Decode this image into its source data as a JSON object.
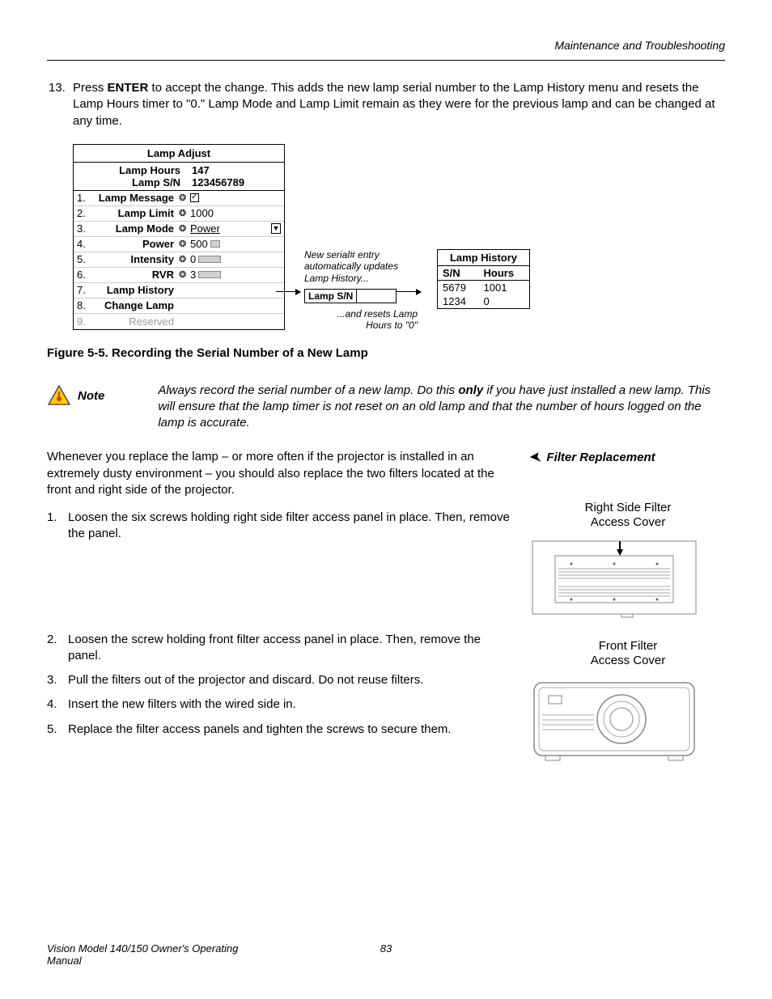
{
  "header": {
    "section": "Maintenance and Troubleshooting"
  },
  "step13": {
    "number": "13.",
    "text_pre": "Press ",
    "text_bold": "ENTER",
    "text_post": " to accept the change. This adds the new lamp serial number to the Lamp History menu and resets the Lamp Hours timer to \"0.\" Lamp Mode and Lamp Limit remain as they were for the previous lamp and can be changed at any time."
  },
  "lamp_adjust": {
    "title": "Lamp Adjust",
    "info": [
      {
        "k": "Lamp Hours",
        "v": "147"
      },
      {
        "k": "Lamp S/N",
        "v": "123456789"
      }
    ],
    "rows": [
      {
        "idx": "1.",
        "label": "Lamp Message",
        "val": "",
        "checkbox": true
      },
      {
        "idx": "2.",
        "label": "Lamp Limit",
        "val": "1000"
      },
      {
        "idx": "3.",
        "label": "Lamp Mode",
        "val": "Power",
        "dropdown": true,
        "underline": true
      },
      {
        "idx": "4.",
        "label": "Power",
        "val": "500",
        "slider": 12
      },
      {
        "idx": "5.",
        "label": "Intensity",
        "val": "0",
        "slider": 28
      },
      {
        "idx": "6.",
        "label": "RVR",
        "val": "3",
        "slider": 28
      },
      {
        "idx": "7.",
        "label": "Lamp History",
        "val": ""
      },
      {
        "idx": "8.",
        "label": "Change Lamp",
        "val": ""
      },
      {
        "idx": "9.",
        "label": "Reserved",
        "val": "",
        "grey": true
      }
    ]
  },
  "annotation": {
    "top1": "New serial# entry",
    "top2": "automatically updates",
    "top3": "Lamp History...",
    "sn_label": "Lamp S/N",
    "bot1": "...and resets Lamp",
    "bot2": "Hours to \"0\""
  },
  "lamp_history": {
    "title": "Lamp History",
    "head": [
      "S/N",
      "Hours"
    ],
    "rows": [
      [
        "5679",
        "1001"
      ],
      [
        "1234",
        "0"
      ]
    ]
  },
  "figure_caption": "Figure 5-5. Recording the Serial Number of a New Lamp",
  "note": {
    "label": "Note",
    "pre": "Always record the serial number of a new lamp. Do this ",
    "bold": "only",
    "post": " if you have just installed a new lamp. This will ensure that the lamp timer is not reset on an old lamp and that the number of hours logged on the lamp is accurate."
  },
  "filter": {
    "heading": "Filter Replacement",
    "intro": "Whenever you replace the lamp – or more often if the projector is installed in an extremely dusty environment – you should also replace the two filters located at the front and right side of the projector.",
    "steps": [
      "Loosen the six screws holding right side filter access panel in place. Then, remove the panel.",
      "Loosen the screw holding front filter access panel in place. Then, remove the panel.",
      "Pull the filters out of the projector and discard. Do not reuse filters.",
      "Insert the new filters with the wired side in.",
      "Replace the filter access panels and tighten the screws to secure them."
    ],
    "img1_l1": "Right Side Filter",
    "img1_l2": "Access Cover",
    "img2_l1": "Front Filter",
    "img2_l2": "Access Cover"
  },
  "footer": {
    "title": "Vision Model 140/150 Owner's Operating Manual",
    "page": "83"
  },
  "colors": {
    "text": "#000000",
    "grey": "#999999",
    "slider": "#d0d0d0"
  }
}
